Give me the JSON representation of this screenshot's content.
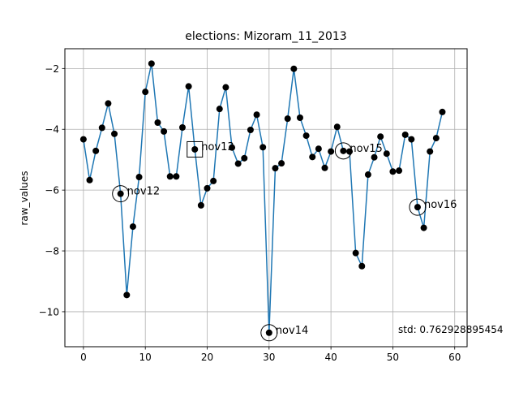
{
  "chart_data": {
    "type": "line",
    "title": "elections: Mizoram_11_2013",
    "xlabel": "",
    "ylabel": "raw_values",
    "xlim": [
      -3,
      62
    ],
    "ylim": [
      -11.15,
      -1.35
    ],
    "xticks": [
      0,
      10,
      20,
      30,
      40,
      50,
      60
    ],
    "yticks": [
      -10,
      -8,
      -6,
      -4,
      -2
    ],
    "xtick_labels": [
      "0",
      "10",
      "20",
      "30",
      "40",
      "50",
      "60"
    ],
    "ytick_labels": [
      "−10",
      "−8",
      "−6",
      "−4",
      "−2"
    ],
    "grid": true,
    "series": [
      {
        "color": "#1f77b4",
        "marker_color": "#000000",
        "x": [
          0,
          1,
          2,
          3,
          4,
          5,
          6,
          7,
          8,
          9,
          10,
          11,
          12,
          13,
          14,
          15,
          16,
          17,
          18,
          19,
          20,
          21,
          22,
          23,
          24,
          25,
          26,
          27,
          28,
          29,
          30,
          31,
          32,
          33,
          34,
          35,
          36,
          37,
          38,
          39,
          40,
          41,
          42,
          43,
          44,
          45,
          46,
          47,
          48,
          49,
          50,
          51,
          52,
          53,
          54,
          55,
          56,
          57,
          58
        ],
        "values": [
          -4.33,
          -5.67,
          -4.71,
          -3.95,
          -3.15,
          -4.15,
          -6.12,
          -9.45,
          -7.2,
          -5.57,
          -2.77,
          -1.84,
          -3.78,
          -4.07,
          -5.55,
          -5.55,
          -3.94,
          -2.59,
          -4.66,
          -6.5,
          -5.94,
          -5.7,
          -3.33,
          -2.62,
          -4.6,
          -5.13,
          -4.95,
          -4.02,
          -3.52,
          -4.59,
          -10.69,
          -5.28,
          -5.12,
          -3.65,
          -2.01,
          -3.62,
          -4.21,
          -4.91,
          -4.64,
          -5.27,
          -4.73,
          -3.92,
          -4.71,
          -4.73,
          -8.07,
          -8.5,
          -5.49,
          -4.92,
          -4.24,
          -4.8,
          -5.39,
          -5.36,
          -4.18,
          -4.33,
          -6.56,
          -7.24,
          -4.73,
          -4.29,
          -3.43
        ]
      }
    ],
    "annotations": [
      {
        "label": "nov12",
        "x": 6,
        "y": -6.12,
        "marker": "circle"
      },
      {
        "label": "nov13",
        "x": 18,
        "y": -4.66,
        "marker": "square"
      },
      {
        "label": "nov14",
        "x": 30,
        "y": -10.69,
        "marker": "circle"
      },
      {
        "label": "nov15",
        "x": 42,
        "y": -4.71,
        "marker": "circle"
      },
      {
        "label": "nov16",
        "x": 54,
        "y": -6.56,
        "marker": "circle"
      }
    ],
    "footer_text": "std: 0.762928895454"
  }
}
